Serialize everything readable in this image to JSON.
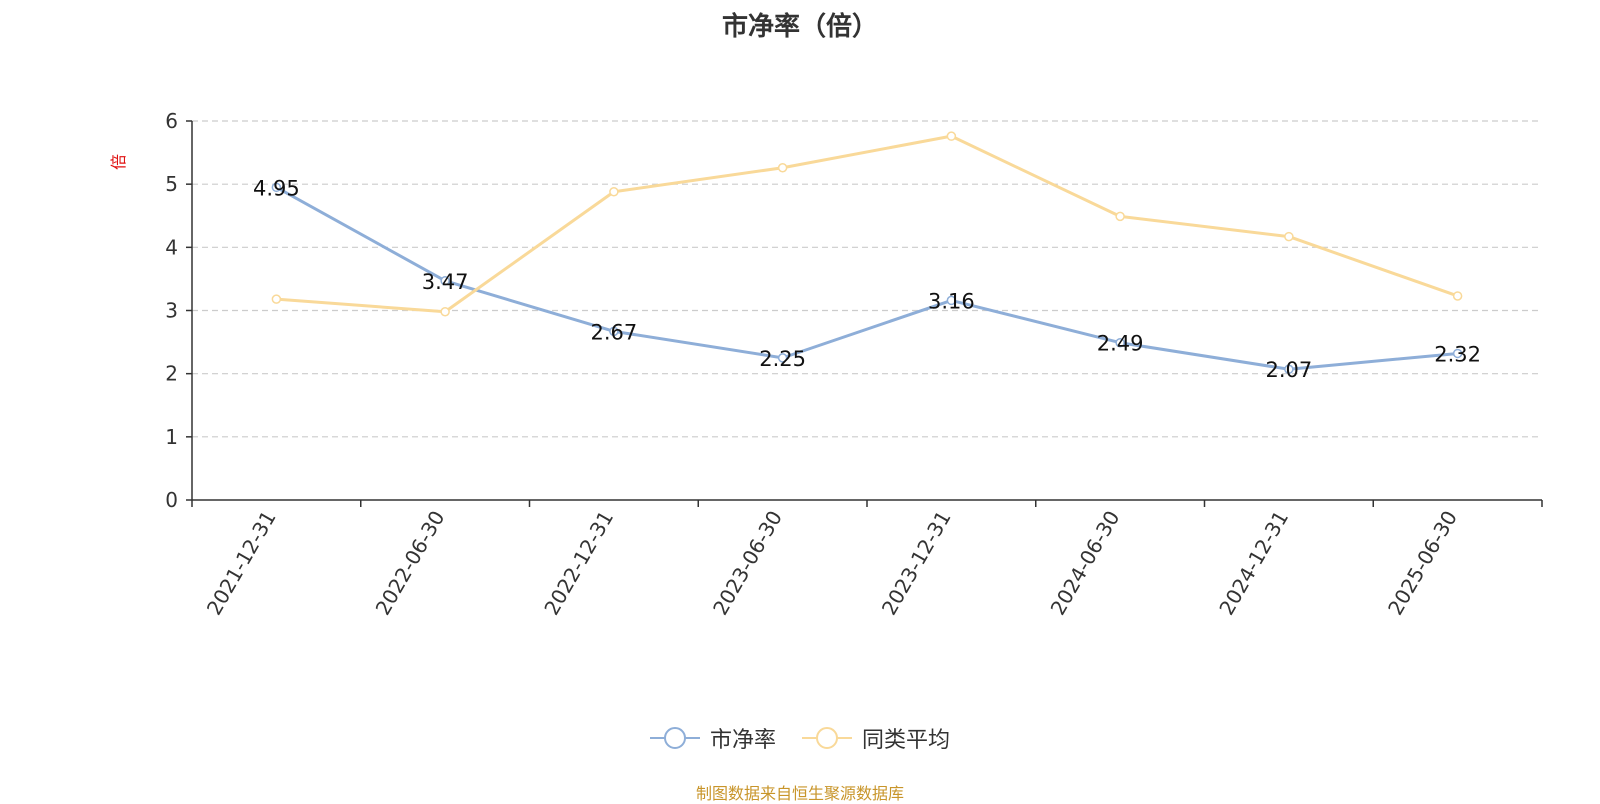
{
  "chart_data": {
    "type": "line",
    "title": "市净率（倍）",
    "ylabel": "倍",
    "xlabel": "",
    "ylim": [
      0,
      6
    ],
    "yticks": [
      0,
      1,
      2,
      3,
      4,
      5,
      6
    ],
    "grid": true,
    "legend_position": "bottom-center",
    "categories": [
      "2021-12-31",
      "2022-06-30",
      "2022-12-31",
      "2023-06-30",
      "2023-12-31",
      "2024-06-30",
      "2024-12-31",
      "2025-06-30"
    ],
    "series": [
      {
        "name": "市净率",
        "color": "#8eaed8",
        "values": [
          4.95,
          3.47,
          2.67,
          2.25,
          3.16,
          2.49,
          2.07,
          2.32
        ],
        "labels": [
          "4.95",
          "3.47",
          "2.67",
          "2.25",
          "3.16",
          "2.49",
          "2.07",
          "2.32"
        ]
      },
      {
        "name": "同类平均",
        "color": "#f9d999",
        "values": [
          3.18,
          2.98,
          4.88,
          5.26,
          5.76,
          4.49,
          4.17,
          3.23
        ]
      }
    ]
  },
  "source_note": "制图数据来自恒生聚源数据库"
}
